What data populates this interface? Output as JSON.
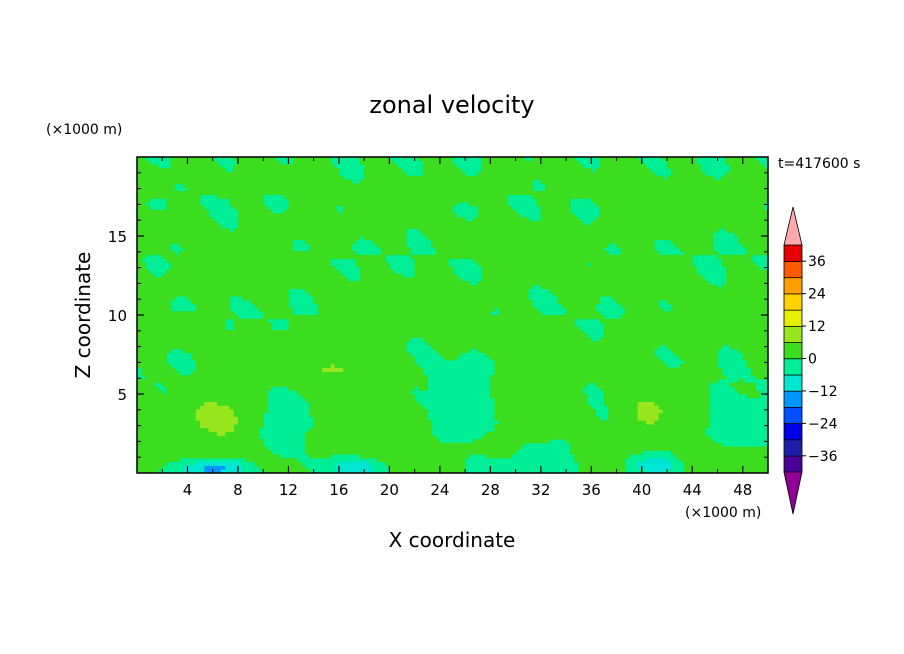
{
  "chart_data": {
    "type": "heatmap",
    "title": "zonal velocity",
    "xlabel": "X coordinate",
    "ylabel": "Z coordinate",
    "x_unit_label": "(×1000 m)",
    "y_unit_label": "(×1000 m)",
    "time_label": "t=417600 s",
    "xlim": [
      0,
      50
    ],
    "ylim": [
      0,
      20
    ],
    "x_ticks": [
      4,
      8,
      12,
      16,
      20,
      24,
      28,
      32,
      36,
      40,
      44,
      48
    ],
    "y_ticks": [
      5,
      10,
      15
    ],
    "colorbar": {
      "levels": [
        -42,
        -36,
        -30,
        -24,
        -18,
        -12,
        -6,
        0,
        6,
        12,
        18,
        24,
        30,
        36,
        42
      ],
      "tick_labels": [
        "36",
        "24",
        "12",
        "0",
        "−12",
        "−24",
        "−36"
      ],
      "tick_values": [
        36,
        24,
        12,
        0,
        -12,
        -24,
        -36
      ],
      "colors": [
        "#8e0096",
        "#4b0096",
        "#1e1eaa",
        "#0000e6",
        "#0050ff",
        "#0096ff",
        "#00e6d2",
        "#00ee96",
        "#3cdc1e",
        "#9ae61e",
        "#e6f000",
        "#ffd200",
        "#ffa000",
        "#ff5a00",
        "#e60000",
        "#ffaaaa"
      ],
      "extend": "both"
    },
    "features": [
      {
        "x": 6.5,
        "z": 3.5,
        "rx": 3.2,
        "rz": 1.6,
        "value": 8
      },
      {
        "x": 19,
        "z": 3.2,
        "rx": 3.6,
        "rz": 1.4,
        "value": 5
      },
      {
        "x": 31,
        "z": 4.6,
        "rx": 2.4,
        "rz": 2.6,
        "value": 5
      },
      {
        "x": 41,
        "z": 4.0,
        "rx": 2.6,
        "rz": 1.8,
        "value": 7
      },
      {
        "x": 15,
        "z": 6.5,
        "rx": 4.5,
        "rz": 1.0,
        "value": 6
      },
      {
        "x": 11,
        "z": 3.0,
        "rx": 1.3,
        "rz": 2.0,
        "value": -5
      },
      {
        "x": 26,
        "z": 4.0,
        "rx": 1.8,
        "rz": 2.5,
        "value": -6
      },
      {
        "x": 48,
        "z": 3.0,
        "rx": 2.2,
        "rz": 1.3,
        "value": -5
      },
      {
        "x": 6,
        "z": 0.3,
        "rx": 2.5,
        "rz": 0.6,
        "value": -16
      },
      {
        "x": 17,
        "z": 0.3,
        "rx": 2.5,
        "rz": 0.6,
        "value": -14
      },
      {
        "x": 41,
        "z": 0.4,
        "rx": 2.0,
        "rz": 0.6,
        "value": -14
      },
      {
        "x": 32,
        "z": 0.8,
        "rx": 3.0,
        "rz": 1.0,
        "value": -8
      }
    ],
    "bands": [
      {
        "z": 8.5,
        "value": 2
      },
      {
        "z": 11.8,
        "value": 2
      },
      {
        "z": 15.5,
        "value": 2
      },
      {
        "z": 18.5,
        "value": 1
      },
      {
        "z": 0.8,
        "value": 3
      }
    ]
  }
}
